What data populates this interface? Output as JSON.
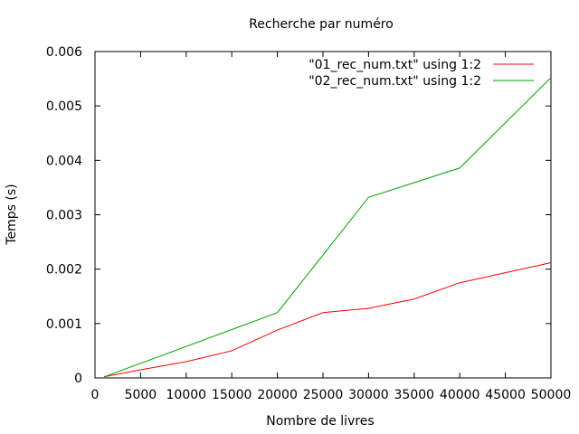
{
  "chart_data": {
    "type": "line",
    "title": "Recherche par numéro",
    "xlabel": "Nombre de livres",
    "ylabel": "Temps (s)",
    "xlim": [
      0,
      50000
    ],
    "ylim": [
      0,
      0.006
    ],
    "grid": false,
    "legend_position": "top-right",
    "x_ticks": [
      "0",
      "5000",
      "10000",
      "15000",
      "20000",
      "25000",
      "30000",
      "35000",
      "40000",
      "45000",
      "50000"
    ],
    "y_ticks": [
      "0",
      "0.001",
      "0.002",
      "0.003",
      "0.004",
      "0.005",
      "0.006"
    ],
    "x": [
      1000,
      10000,
      15000,
      20000,
      25000,
      30000,
      35000,
      40000,
      50000
    ],
    "series": [
      {
        "name": "\"01_rec_num.txt\" using 1:2",
        "color": "#ff0000",
        "x": [
          1000,
          5000,
          10000,
          15000,
          20000,
          25000,
          30000,
          35000,
          40000,
          50000
        ],
        "values": [
          2e-05,
          0.00015,
          0.0003,
          0.0005,
          0.00088,
          0.0012,
          0.00128,
          0.00145,
          0.00175,
          0.00212
        ]
      },
      {
        "name": "\"02_rec_num.txt\" using 1:2",
        "color": "#00a000",
        "x": [
          1000,
          20000,
          30000,
          40000,
          50000
        ],
        "values": [
          2e-05,
          0.0012,
          0.00332,
          0.00386,
          0.00552
        ]
      }
    ]
  }
}
